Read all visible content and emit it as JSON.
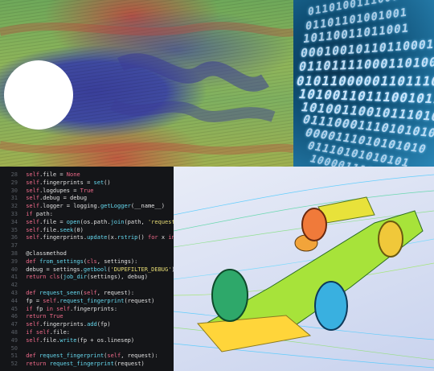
{
  "panels": {
    "cfd_flow": {
      "name": "cylinder-flow-simulation"
    },
    "binary": {
      "lines": [
        "0110100111000",
        "01101101001001",
        "10110011011001",
        "00010010110110001",
        "011011110001101001",
        "010110000011011100",
        "1010011011100101110",
        "10100110010111010",
        "01110001110101010",
        "0000111010101010",
        "01110101010101",
        "100001110100"
      ]
    },
    "code": {
      "lines": [
        "        self.file = None",
        "        self.fingerprints = set()",
        "        self.logdupes = True",
        "        self.debug = debug",
        "        self.logger = logging.getLogger(__name__)",
        "        if path:",
        "            self.file = open(os.path.join(path, 'requests.seen'), 'a+')",
        "            self.file.seek(0)",
        "            self.fingerprints.update(x.rstrip() for x in self.file)",
        "",
        "    @classmethod",
        "    def from_settings(cls, settings):",
        "        debug = settings.getbool('DUPEFILTER_DEBUG')",
        "        return cls(job_dir(settings), debug)",
        "",
        "    def request_seen(self, request):",
        "        fp = self.request_fingerprint(request)",
        "        if fp in self.fingerprints:",
        "            return True",
        "        self.fingerprints.add(fp)",
        "        if self.file:",
        "            self.file.write(fp + os.linesep)",
        "",
        "    def request_fingerprint(self, request):",
        "        return request_fingerprint(request)"
      ],
      "line_numbers": [
        "28",
        "29",
        "30",
        "31",
        "32",
        "33",
        "34",
        "35",
        "36",
        "37",
        "38",
        "39",
        "40",
        "41",
        "42",
        "43",
        "44",
        "45",
        "46",
        "47",
        "48",
        "49",
        "50",
        "51",
        "52"
      ]
    },
    "f1_cfd": {
      "name": "formula-car-aerodynamics"
    }
  },
  "colors": {
    "flow_low": "#3f4aa0",
    "flow_mid": "#7fb060",
    "flow_high": "#c8403c",
    "binary_bg": "#0f4f75",
    "code_bg": "#141518",
    "code_keyword": "#f06a8a",
    "code_string": "#e6db74",
    "code_func": "#66d9ef",
    "code_text": "#e0e0e0"
  }
}
